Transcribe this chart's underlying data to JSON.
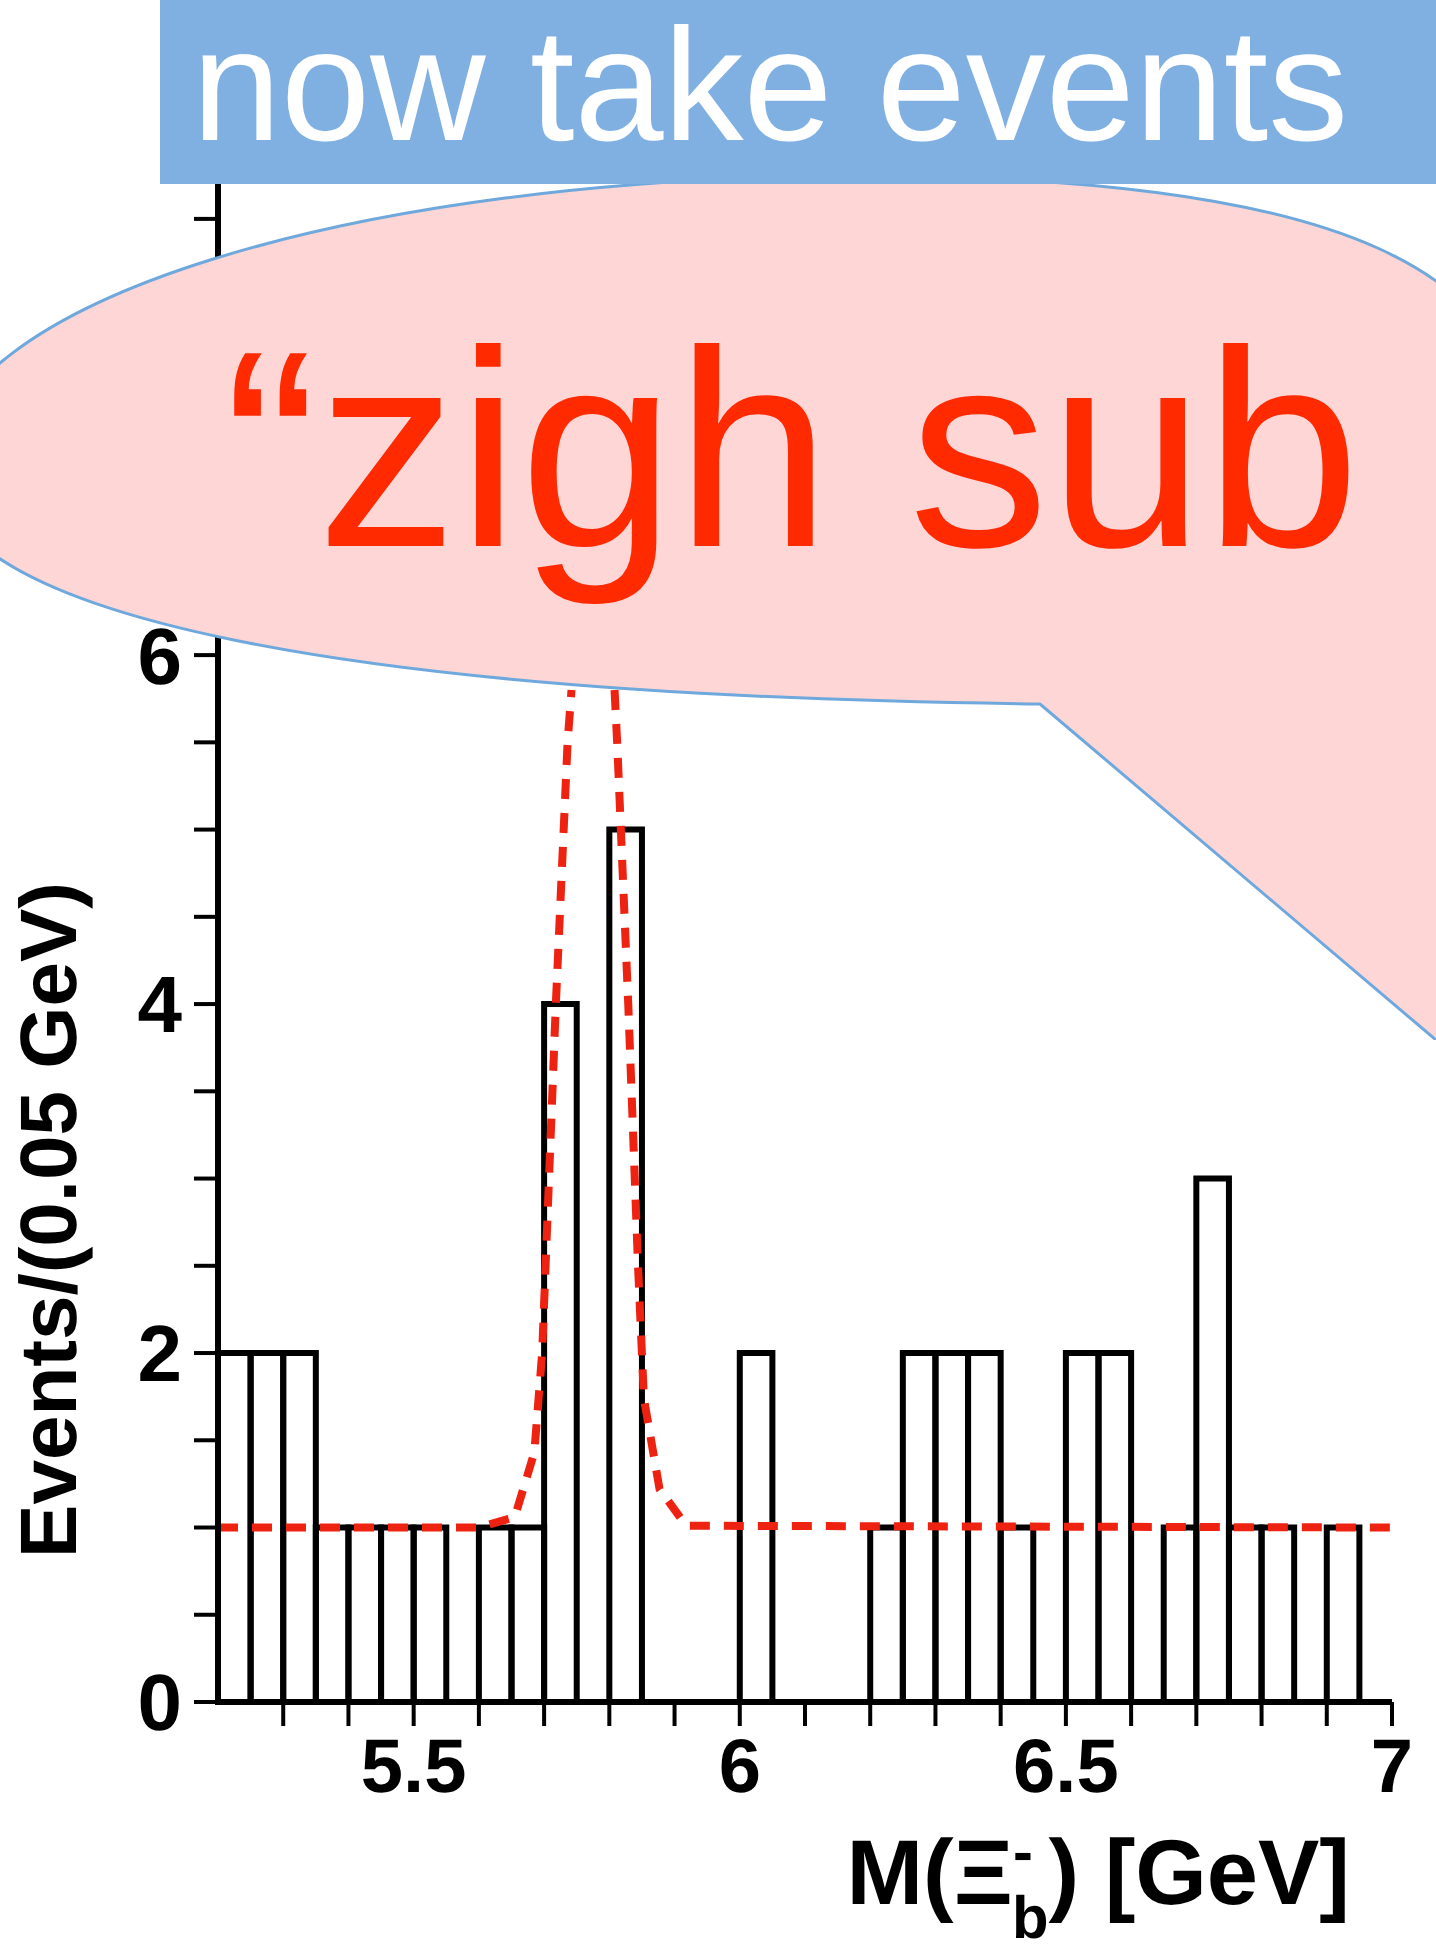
{
  "chart_data": {
    "type": "histogram",
    "xlabel": "M(Ξ$^{-}$$_{b}$) [GeV]",
    "ylabel": "Events/(0.05 GeV)",
    "annotations": [
      "now take events",
      "“zigh sub"
    ],
    "xlim": [
      5.2,
      7
    ],
    "ylim": [
      0,
      8.7
    ],
    "xticks": [
      {
        "value": 5.3,
        "label": null
      },
      {
        "value": 5.4,
        "label": null
      },
      5.5,
      {
        "value": 5.6,
        "label": null
      },
      {
        "value": 5.7,
        "label": null
      },
      {
        "value": 5.8,
        "label": null
      },
      {
        "value": 5.9,
        "label": null
      },
      6,
      {
        "value": 6.1,
        "label": null
      },
      {
        "value": 6.2,
        "label": null
      },
      {
        "value": 6.3,
        "label": null
      },
      {
        "value": 6.4,
        "label": null
      },
      6.5,
      {
        "value": 6.6,
        "label": null
      },
      {
        "value": 6.7,
        "label": null
      },
      {
        "value": 6.8,
        "label": null
      },
      {
        "value": 6.9,
        "label": null
      },
      7
    ],
    "yticks": [
      0,
      {
        "value": 0.5,
        "label": null
      },
      {
        "value": 1,
        "label": null
      },
      {
        "value": 1.5,
        "label": null
      },
      2,
      {
        "value": 2.5,
        "label": null
      },
      {
        "value": 3,
        "label": null
      },
      {
        "value": 3.5,
        "label": null
      },
      4,
      {
        "value": 4.5,
        "label": null
      },
      {
        "value": 5,
        "label": null
      },
      {
        "value": 5.5,
        "label": null
      },
      6,
      {
        "value": 6.5,
        "label": null
      },
      {
        "value": 7,
        "label": null
      },
      {
        "value": 7.5,
        "label": null
      },
      {
        "value": 8,
        "label": null
      },
      {
        "value": 8.5,
        "label": null
      }
    ],
    "series": [
      {
        "type": "histogram",
        "color": "#000000",
        "bins": [
          5.2,
          5.25,
          5.3,
          5.35,
          5.4,
          5.45,
          5.5,
          5.55,
          5.6,
          5.65,
          5.7,
          5.75,
          5.8,
          5.85,
          5.9,
          5.95,
          6,
          6.05,
          6.1,
          6.15,
          6.2,
          6.25,
          6.3,
          6.35,
          6.4,
          6.45,
          6.5,
          6.55,
          6.6,
          6.65,
          6.7,
          6.75,
          6.8,
          6.85,
          6.9,
          6.95,
          7
        ],
        "values": [
          2,
          2,
          2,
          1,
          1,
          1,
          1,
          0,
          1,
          1,
          4,
          null,
          5,
          0,
          0,
          0,
          2,
          0,
          0,
          0,
          1,
          2,
          2,
          2,
          1,
          0,
          2,
          2,
          0,
          1,
          3,
          1,
          1,
          0,
          1,
          0
        ]
      },
      {
        "type": "line",
        "color": "#ee2211",
        "line_style": "dashed",
        "x": [
          5.2,
          5.6,
          5.655,
          5.685,
          5.697,
          5.718,
          5.736,
          5.742,
          5.775,
          5.808,
          5.812,
          5.829,
          5.844,
          5.853,
          5.877,
          5.918,
          7
        ],
        "values": [
          1,
          1,
          1.06,
          1.43,
          2,
          4,
          5.5,
          5.8,
          null,
          5.8,
          5.5,
          4,
          2.5,
          1.74,
          1.22,
          1.01,
          1
        ]
      }
    ]
  }
}
